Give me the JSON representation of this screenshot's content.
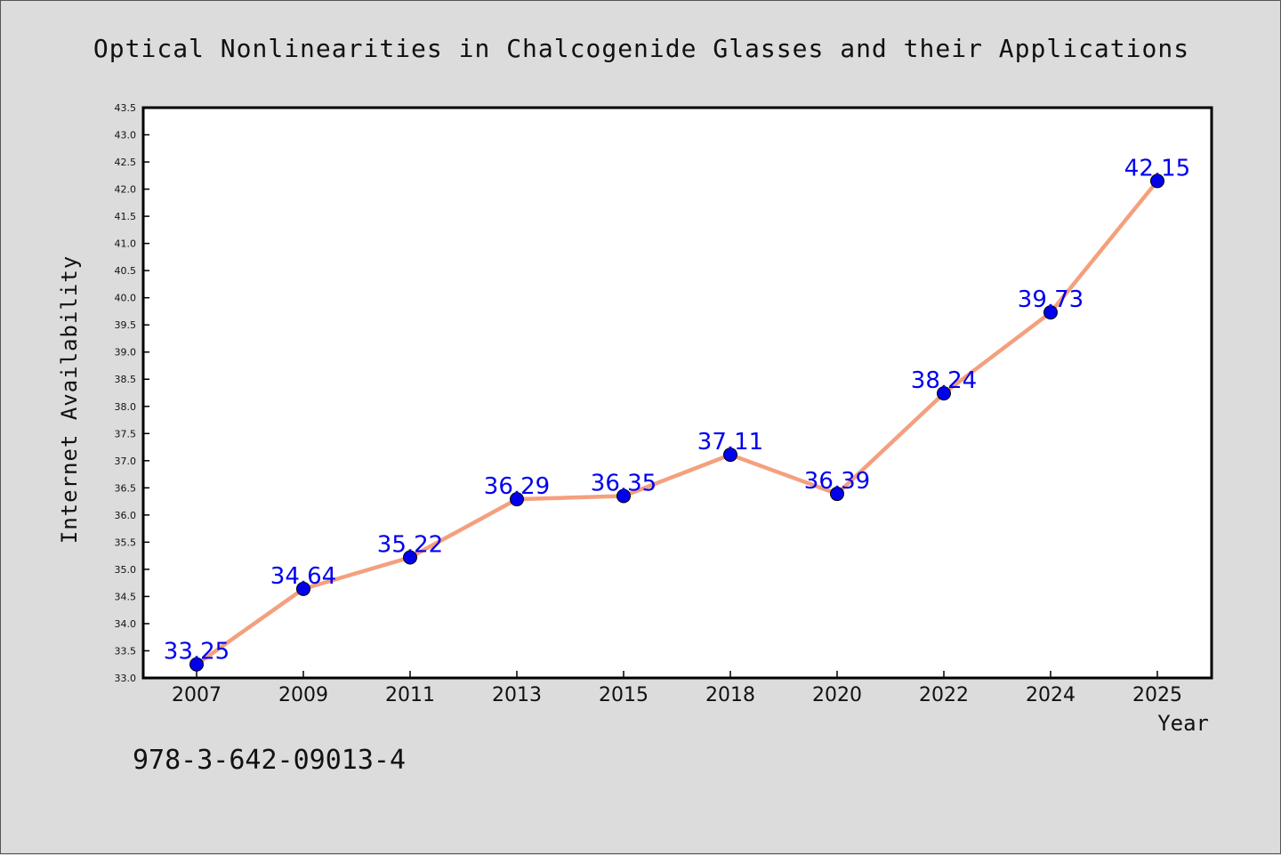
{
  "chart_data": {
    "type": "line",
    "title": "Optical Nonlinearities in Chalcogenide Glasses and their Applications",
    "xlabel": "Year",
    "ylabel": "Internet Availability",
    "categories": [
      "2007",
      "2009",
      "2011",
      "2013",
      "2015",
      "2018",
      "2020",
      "2022",
      "2024",
      "2025"
    ],
    "series": [
      {
        "values": [
          33.25,
          34.64,
          35.22,
          36.29,
          36.35,
          37.11,
          36.39,
          38.24,
          39.73,
          42.15
        ],
        "labels": [
          "33.25",
          "34.64",
          "35.22",
          "36.29",
          "36.35",
          "37.11",
          "36.39",
          "38.24",
          "39.73",
          "42.15"
        ]
      }
    ],
    "ylim": [
      33.0,
      43.5
    ],
    "yticks": [
      "33.0",
      "33.5",
      "34.0",
      "34.5",
      "35.0",
      "35.5",
      "36.0",
      "36.5",
      "37.0",
      "37.5",
      "38.0",
      "38.5",
      "39.0",
      "39.5",
      "40.0",
      "40.5",
      "41.0",
      "41.5",
      "42.0",
      "42.5",
      "43.0",
      "43.5"
    ],
    "grid": false,
    "colors": {
      "line": "#f4a07e",
      "marker": "#0000ee",
      "label": "#0000ee",
      "plot_bg": "#ffffff",
      "page_bg": "#dcdcdc"
    }
  },
  "footer_text": "978-3-642-09013-4"
}
